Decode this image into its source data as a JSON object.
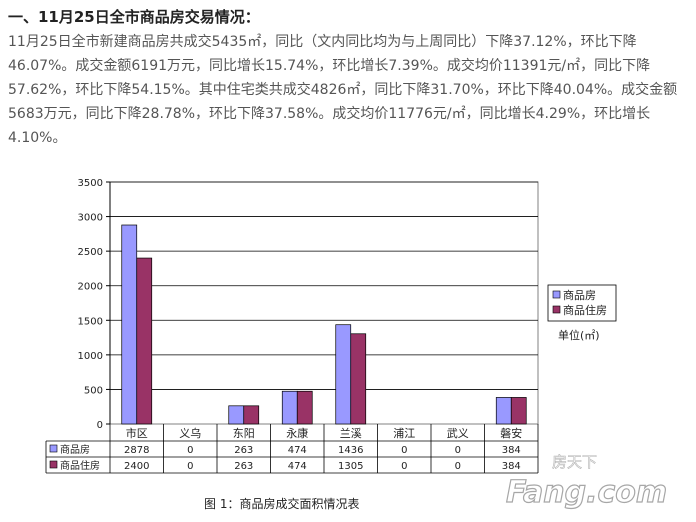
{
  "heading": "一、11月25日全市商品房交易情况：",
  "paragraph": "11月25日全市新建商品房共成交5435㎡，同比（文内同比均为与上周同比）下降37.12%，环比下降46.07%。成交金额6191万元，同比增长15.74%，环比增长7.39%。成交均价11391元/㎡，同比下降57.62%，环比下降54.15%。其中住宅类共成交4826㎡，同比下降31.70%，环比下降40.04%。成交金额5683万元，同比下降28.78%，环比下降37.58%。成交均价11776元/㎡，同比增长4.29%，环比增长4.10%。",
  "chart_data": {
    "type": "bar",
    "categories": [
      "市区",
      "义乌",
      "东阳",
      "永康",
      "兰溪",
      "浦江",
      "武义",
      "磐安"
    ],
    "series": [
      {
        "name": "商品房",
        "values": [
          2878,
          0,
          263,
          474,
          1436,
          0,
          0,
          384
        ],
        "color": "#9999FF"
      },
      {
        "name": "商品住房",
        "values": [
          2400,
          0,
          263,
          474,
          1305,
          0,
          0,
          384
        ],
        "color": "#993366"
      }
    ],
    "ylim": [
      0,
      3500
    ],
    "yticks": [
      0,
      500,
      1000,
      1500,
      2000,
      2500,
      3000,
      3500
    ],
    "unit_label": "单位(㎡)",
    "legend_position": "right",
    "grid": true,
    "caption": "图 1：商品房成交面积情况表"
  },
  "watermark": {
    "site": "房天下",
    "logo": "Fang.com"
  }
}
